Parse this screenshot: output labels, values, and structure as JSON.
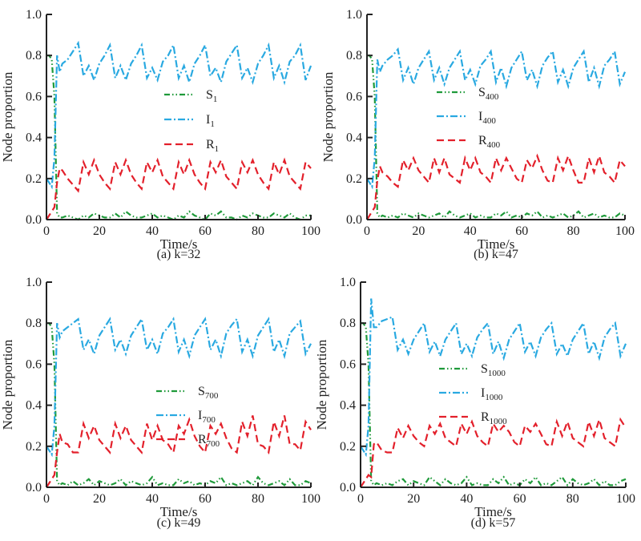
{
  "chart_data": [
    {
      "type": "line",
      "title": "(a) k=32",
      "xlabel": "Time/s",
      "ylabel": "Node proportion",
      "xlim": [
        0,
        100
      ],
      "ylim": [
        0,
        1
      ],
      "xticks": [
        "0",
        "20",
        "40",
        "60",
        "80",
        "100"
      ],
      "yticks": [
        "0.0",
        "0.2",
        "0.4",
        "0.6",
        "0.8",
        "1.0"
      ],
      "legend": [
        {
          "base": "S",
          "sub": "1"
        },
        {
          "base": "I",
          "sub": "1"
        },
        {
          "base": "R",
          "sub": "1"
        }
      ],
      "x": [
        0,
        1,
        2,
        3,
        4,
        5,
        6,
        8,
        10,
        12,
        14,
        16,
        18,
        20,
        22,
        24,
        26,
        28,
        30,
        32,
        34,
        36,
        38,
        40,
        42,
        44,
        46,
        48,
        50,
        52,
        54,
        56,
        58,
        60,
        62,
        64,
        66,
        68,
        70,
        72,
        74,
        76,
        78,
        80,
        82,
        84,
        86,
        88,
        90,
        92,
        94,
        96,
        98,
        100
      ],
      "series": [
        {
          "name": "S",
          "values": [
            0.8,
            0.8,
            0.78,
            0.6,
            0.03,
            0.01,
            0.01,
            0.02,
            0.01,
            0.0,
            0.02,
            0.01,
            0.03,
            0.02,
            0.01,
            0.01,
            0.03,
            0.01,
            0.04,
            0.02,
            0.01,
            0.01,
            0.02,
            0.03,
            0.01,
            0.02,
            0.01,
            0.0,
            0.02,
            0.01,
            0.04,
            0.02,
            0.01,
            0.0,
            0.03,
            0.02,
            0.04,
            0.01,
            0.01,
            0.0,
            0.02,
            0.01,
            0.03,
            0.02,
            0.01,
            0.01,
            0.03,
            0.02,
            0.01,
            0.03,
            0.01,
            0.0,
            0.02,
            0.02
          ]
        },
        {
          "name": "I",
          "values": [
            0.2,
            0.18,
            0.16,
            0.3,
            0.8,
            0.72,
            0.76,
            0.78,
            0.82,
            0.86,
            0.7,
            0.75,
            0.68,
            0.76,
            0.8,
            0.85,
            0.69,
            0.75,
            0.68,
            0.76,
            0.8,
            0.85,
            0.69,
            0.74,
            0.68,
            0.77,
            0.8,
            0.85,
            0.69,
            0.75,
            0.67,
            0.76,
            0.8,
            0.85,
            0.7,
            0.74,
            0.67,
            0.77,
            0.81,
            0.85,
            0.69,
            0.74,
            0.67,
            0.76,
            0.8,
            0.85,
            0.69,
            0.75,
            0.67,
            0.77,
            0.8,
            0.85,
            0.68,
            0.75
          ]
        },
        {
          "name": "R",
          "values": [
            0.0,
            0.02,
            0.04,
            0.06,
            0.18,
            0.25,
            0.24,
            0.2,
            0.17,
            0.14,
            0.28,
            0.22,
            0.29,
            0.22,
            0.18,
            0.15,
            0.28,
            0.22,
            0.29,
            0.22,
            0.18,
            0.15,
            0.28,
            0.23,
            0.29,
            0.21,
            0.18,
            0.15,
            0.28,
            0.22,
            0.29,
            0.22,
            0.18,
            0.15,
            0.28,
            0.23,
            0.29,
            0.21,
            0.18,
            0.15,
            0.28,
            0.23,
            0.29,
            0.22,
            0.18,
            0.15,
            0.28,
            0.22,
            0.29,
            0.21,
            0.18,
            0.15,
            0.28,
            0.25
          ]
        }
      ]
    },
    {
      "type": "line",
      "title": "(b) k=47",
      "xlabel": "Time/s",
      "ylabel": "Node proportion",
      "xlim": [
        0,
        100
      ],
      "ylim": [
        0,
        1
      ],
      "xticks": [
        "0",
        "20",
        "40",
        "60",
        "80",
        "100"
      ],
      "yticks": [
        "0.0",
        "0.2",
        "0.4",
        "0.6",
        "0.8",
        "1.0"
      ],
      "legend": [
        {
          "base": "S",
          "sub": "400"
        },
        {
          "base": "I",
          "sub": "400"
        },
        {
          "base": "R",
          "sub": "400"
        }
      ],
      "x": [
        0,
        1,
        2,
        3,
        4,
        5,
        6,
        8,
        10,
        12,
        14,
        16,
        18,
        20,
        22,
        24,
        26,
        28,
        30,
        32,
        34,
        36,
        38,
        40,
        42,
        44,
        46,
        48,
        50,
        52,
        54,
        56,
        58,
        60,
        62,
        64,
        66,
        68,
        70,
        72,
        74,
        76,
        78,
        80,
        82,
        84,
        86,
        88,
        90,
        92,
        94,
        96,
        98,
        100
      ],
      "series": [
        {
          "name": "S",
          "values": [
            0.8,
            0.8,
            0.78,
            0.6,
            0.03,
            0.01,
            0.02,
            0.01,
            0.02,
            0.01,
            0.03,
            0.02,
            0.01,
            0.03,
            0.02,
            0.01,
            0.02,
            0.03,
            0.01,
            0.04,
            0.02,
            0.01,
            0.02,
            0.03,
            0.01,
            0.02,
            0.01,
            0.01,
            0.03,
            0.02,
            0.04,
            0.01,
            0.02,
            0.01,
            0.03,
            0.02,
            0.04,
            0.01,
            0.02,
            0.01,
            0.02,
            0.03,
            0.01,
            0.02,
            0.04,
            0.01,
            0.02,
            0.03,
            0.01,
            0.02,
            0.01,
            0.01,
            0.03,
            0.02
          ]
        },
        {
          "name": "I",
          "values": [
            0.2,
            0.18,
            0.16,
            0.3,
            0.78,
            0.72,
            0.75,
            0.78,
            0.8,
            0.83,
            0.68,
            0.74,
            0.66,
            0.74,
            0.78,
            0.82,
            0.68,
            0.74,
            0.66,
            0.74,
            0.78,
            0.82,
            0.68,
            0.73,
            0.66,
            0.75,
            0.78,
            0.82,
            0.67,
            0.74,
            0.65,
            0.74,
            0.78,
            0.82,
            0.68,
            0.73,
            0.65,
            0.75,
            0.79,
            0.82,
            0.67,
            0.73,
            0.65,
            0.74,
            0.78,
            0.82,
            0.67,
            0.74,
            0.65,
            0.75,
            0.78,
            0.82,
            0.66,
            0.72
          ]
        },
        {
          "name": "R",
          "values": [
            0.0,
            0.02,
            0.04,
            0.06,
            0.19,
            0.26,
            0.23,
            0.21,
            0.18,
            0.16,
            0.29,
            0.24,
            0.3,
            0.24,
            0.21,
            0.18,
            0.3,
            0.23,
            0.3,
            0.22,
            0.2,
            0.18,
            0.3,
            0.24,
            0.3,
            0.23,
            0.21,
            0.18,
            0.3,
            0.24,
            0.3,
            0.25,
            0.2,
            0.18,
            0.29,
            0.25,
            0.31,
            0.24,
            0.19,
            0.18,
            0.3,
            0.24,
            0.31,
            0.24,
            0.18,
            0.18,
            0.3,
            0.23,
            0.31,
            0.23,
            0.21,
            0.18,
            0.29,
            0.26
          ]
        }
      ]
    },
    {
      "type": "line",
      "title": "(c) k=49",
      "xlabel": "Time/s",
      "ylabel": "Node proportion",
      "xlim": [
        0,
        100
      ],
      "ylim": [
        0,
        1
      ],
      "xticks": [
        "0",
        "20",
        "40",
        "60",
        "80",
        "100"
      ],
      "yticks": [
        "0.0",
        "0.2",
        "0.4",
        "0.6",
        "0.8",
        "1.0"
      ],
      "legend": [
        {
          "base": "S",
          "sub": "700"
        },
        {
          "base": "I",
          "sub": "700"
        },
        {
          "base": "R",
          "sub": "700"
        }
      ],
      "x": [
        0,
        1,
        2,
        3,
        4,
        5,
        6,
        8,
        10,
        12,
        14,
        16,
        18,
        20,
        22,
        24,
        26,
        28,
        30,
        32,
        34,
        36,
        38,
        40,
        42,
        44,
        46,
        48,
        50,
        52,
        54,
        56,
        58,
        60,
        62,
        64,
        66,
        68,
        70,
        72,
        74,
        76,
        78,
        80,
        82,
        84,
        86,
        88,
        90,
        92,
        94,
        96,
        98,
        100
      ],
      "series": [
        {
          "name": "S",
          "values": [
            0.8,
            0.8,
            0.78,
            0.6,
            0.03,
            0.01,
            0.02,
            0.01,
            0.03,
            0.01,
            0.02,
            0.04,
            0.01,
            0.03,
            0.02,
            0.01,
            0.02,
            0.04,
            0.01,
            0.03,
            0.02,
            0.01,
            0.02,
            0.05,
            0.01,
            0.02,
            0.01,
            0.01,
            0.04,
            0.02,
            0.03,
            0.01,
            0.02,
            0.01,
            0.03,
            0.02,
            0.05,
            0.01,
            0.02,
            0.01,
            0.02,
            0.03,
            0.01,
            0.05,
            0.02,
            0.01,
            0.02,
            0.03,
            0.01,
            0.04,
            0.01,
            0.01,
            0.03,
            0.02
          ]
        },
        {
          "name": "I",
          "values": [
            0.2,
            0.18,
            0.16,
            0.3,
            0.8,
            0.73,
            0.76,
            0.78,
            0.8,
            0.82,
            0.67,
            0.72,
            0.65,
            0.74,
            0.78,
            0.82,
            0.67,
            0.72,
            0.65,
            0.74,
            0.78,
            0.82,
            0.67,
            0.72,
            0.65,
            0.75,
            0.78,
            0.82,
            0.66,
            0.72,
            0.64,
            0.74,
            0.78,
            0.82,
            0.67,
            0.72,
            0.64,
            0.75,
            0.79,
            0.82,
            0.66,
            0.72,
            0.64,
            0.74,
            0.78,
            0.82,
            0.66,
            0.72,
            0.64,
            0.75,
            0.78,
            0.81,
            0.65,
            0.7
          ]
        },
        {
          "name": "R",
          "values": [
            0.0,
            0.02,
            0.04,
            0.06,
            0.17,
            0.26,
            0.22,
            0.21,
            0.17,
            0.17,
            0.31,
            0.24,
            0.3,
            0.23,
            0.2,
            0.17,
            0.31,
            0.24,
            0.3,
            0.23,
            0.2,
            0.17,
            0.31,
            0.23,
            0.3,
            0.23,
            0.21,
            0.17,
            0.3,
            0.26,
            0.33,
            0.25,
            0.2,
            0.17,
            0.3,
            0.26,
            0.31,
            0.24,
            0.19,
            0.17,
            0.32,
            0.25,
            0.35,
            0.21,
            0.2,
            0.17,
            0.32,
            0.25,
            0.35,
            0.21,
            0.21,
            0.18,
            0.32,
            0.28
          ]
        }
      ]
    },
    {
      "type": "line",
      "title": "(d) k=57",
      "xlabel": "Time/s",
      "ylabel": "Node proportion",
      "xlim": [
        0,
        100
      ],
      "ylim": [
        0,
        1
      ],
      "xticks": [
        "0",
        "20",
        "40",
        "60",
        "80",
        "100"
      ],
      "yticks": [
        "0.0",
        "0.2",
        "0.4",
        "0.6",
        "0.8",
        "1.0"
      ],
      "legend": [
        {
          "base": "S",
          "sub": "1000"
        },
        {
          "base": "I",
          "sub": "1000"
        },
        {
          "base": "R",
          "sub": "1000"
        }
      ],
      "x": [
        0,
        1,
        2,
        3,
        4,
        5,
        6,
        8,
        10,
        12,
        14,
        16,
        18,
        20,
        22,
        24,
        26,
        28,
        30,
        32,
        34,
        36,
        38,
        40,
        42,
        44,
        46,
        48,
        50,
        52,
        54,
        56,
        58,
        60,
        62,
        64,
        66,
        68,
        70,
        72,
        74,
        76,
        78,
        80,
        82,
        84,
        86,
        88,
        90,
        92,
        94,
        96,
        98,
        100
      ],
      "series": [
        {
          "name": "S",
          "values": [
            0.8,
            0.8,
            0.78,
            0.6,
            0.03,
            0.01,
            0.02,
            0.01,
            0.02,
            0.01,
            0.03,
            0.04,
            0.01,
            0.03,
            0.02,
            0.01,
            0.05,
            0.03,
            0.01,
            0.04,
            0.02,
            0.01,
            0.02,
            0.05,
            0.01,
            0.02,
            0.01,
            0.01,
            0.04,
            0.02,
            0.05,
            0.01,
            0.02,
            0.01,
            0.04,
            0.02,
            0.05,
            0.01,
            0.02,
            0.01,
            0.03,
            0.05,
            0.01,
            0.04,
            0.02,
            0.01,
            0.02,
            0.04,
            0.01,
            0.03,
            0.01,
            0.01,
            0.03,
            0.04
          ]
        },
        {
          "name": "I",
          "values": [
            0.2,
            0.18,
            0.16,
            0.3,
            0.92,
            0.78,
            0.78,
            0.81,
            0.82,
            0.83,
            0.67,
            0.72,
            0.65,
            0.72,
            0.76,
            0.8,
            0.66,
            0.71,
            0.64,
            0.72,
            0.76,
            0.8,
            0.65,
            0.7,
            0.64,
            0.73,
            0.77,
            0.8,
            0.65,
            0.71,
            0.63,
            0.72,
            0.76,
            0.8,
            0.66,
            0.71,
            0.64,
            0.73,
            0.77,
            0.8,
            0.65,
            0.7,
            0.64,
            0.72,
            0.76,
            0.8,
            0.65,
            0.71,
            0.63,
            0.73,
            0.77,
            0.8,
            0.64,
            0.7
          ]
        },
        {
          "name": "R",
          "values": [
            0.0,
            0.02,
            0.04,
            0.06,
            0.05,
            0.21,
            0.22,
            0.18,
            0.17,
            0.17,
            0.29,
            0.24,
            0.3,
            0.25,
            0.22,
            0.2,
            0.3,
            0.26,
            0.31,
            0.24,
            0.22,
            0.2,
            0.31,
            0.26,
            0.32,
            0.25,
            0.22,
            0.2,
            0.31,
            0.27,
            0.3,
            0.27,
            0.22,
            0.2,
            0.3,
            0.27,
            0.31,
            0.26,
            0.21,
            0.2,
            0.32,
            0.25,
            0.32,
            0.24,
            0.22,
            0.2,
            0.32,
            0.25,
            0.33,
            0.24,
            0.22,
            0.2,
            0.33,
            0.29
          ]
        }
      ]
    }
  ],
  "colors": {
    "S": "#1f9a3a",
    "I": "#29a9e1",
    "R": "#e3202b",
    "axis": "#222222"
  }
}
